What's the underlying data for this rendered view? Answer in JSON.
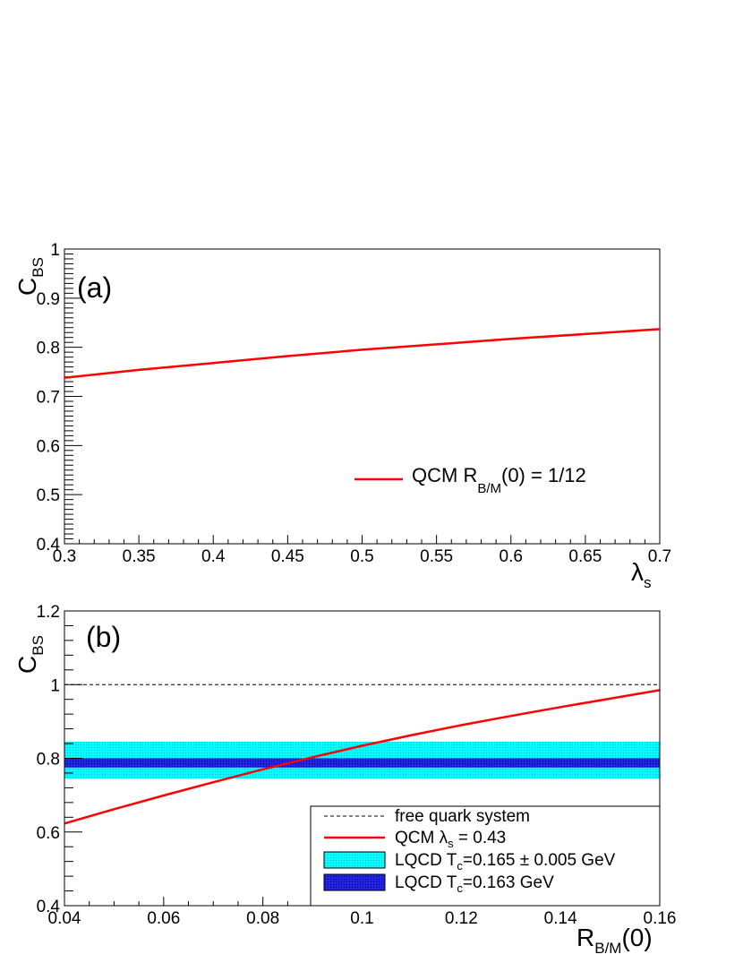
{
  "chart_data": [
    {
      "type": "line",
      "panel_label": "(a)",
      "xlabel": {
        "main": "λ",
        "sub": "s"
      },
      "ylabel": {
        "main": "C",
        "sub": "BS"
      },
      "xlim": [
        0.3,
        0.7
      ],
      "ylim": [
        0.4,
        1.0
      ],
      "x_ticks": [
        0.3,
        0.35,
        0.4,
        0.45,
        0.5,
        0.55,
        0.6,
        0.65,
        0.7
      ],
      "x_tick_labels": [
        "0.3",
        "0.35",
        "0.4",
        "0.45",
        "0.5",
        "0.55",
        "0.6",
        "0.65",
        "0.7"
      ],
      "y_ticks": [
        0.4,
        0.5,
        0.6,
        0.7,
        0.8,
        0.9,
        1.0
      ],
      "y_tick_labels": [
        "0.4",
        "0.5",
        "0.6",
        "0.7",
        "0.8",
        "0.9",
        "1"
      ],
      "grid": false,
      "legend_position": "bottom-right",
      "series": [
        {
          "legend": {
            "pre": "QCM  R",
            "sub": "B/M",
            "post": "(0) = 1/12"
          },
          "color": "#ff0000",
          "x": [
            0.3,
            0.35,
            0.4,
            0.45,
            0.5,
            0.55,
            0.6,
            0.65,
            0.7
          ],
          "y": [
            0.738,
            0.754,
            0.768,
            0.782,
            0.795,
            0.806,
            0.817,
            0.827,
            0.837
          ]
        }
      ]
    },
    {
      "type": "line",
      "panel_label": "(b)",
      "xlabel": {
        "main": "R",
        "sub": "B/M",
        "post": "(0)"
      },
      "ylabel": {
        "main": "C",
        "sub": "BS"
      },
      "xlim": [
        0.04,
        0.16
      ],
      "ylim": [
        0.4,
        1.2
      ],
      "x_ticks": [
        0.04,
        0.06,
        0.08,
        0.1,
        0.12,
        0.14,
        0.16
      ],
      "x_tick_labels": [
        "0.04",
        "0.06",
        "0.08",
        "0.1",
        "0.12",
        "0.14",
        "0.16"
      ],
      "y_ticks": [
        0.4,
        0.6,
        0.8,
        1.0,
        1.2
      ],
      "y_tick_labels": [
        "0.4",
        "0.6",
        "0.8",
        "1",
        "1.2"
      ],
      "grid": false,
      "legend_position": "bottom-right",
      "bands": [
        {
          "legend": {
            "pre": "LQCD T",
            "sub": "c",
            "post": "=0.165 ± 0.005 GeV"
          },
          "color": "#00ffff",
          "ymin": 0.745,
          "ymax": 0.845
        },
        {
          "legend": {
            "pre": "LQCD T",
            "sub": "c",
            "post": "=0.163 GeV"
          },
          "color": "#1a1ad6",
          "ymin": 0.775,
          "ymax": 0.8
        }
      ],
      "series": [
        {
          "legend": {
            "pre": "free quark system"
          },
          "color": "#000000",
          "dashed": true,
          "x": [
            0.04,
            0.16
          ],
          "y": [
            1.0,
            1.0
          ]
        },
        {
          "legend": {
            "pre": "QCM  λ",
            "sub": "s",
            "post": " = 0.43"
          },
          "color": "#ff0000",
          "x": [
            0.04,
            0.05,
            0.06,
            0.07,
            0.08,
            0.09,
            0.1,
            0.11,
            0.12,
            0.13,
            0.14,
            0.15,
            0.16
          ],
          "y": [
            0.623,
            0.662,
            0.699,
            0.735,
            0.77,
            0.803,
            0.834,
            0.863,
            0.89,
            0.915,
            0.939,
            0.962,
            0.985
          ]
        }
      ]
    }
  ]
}
